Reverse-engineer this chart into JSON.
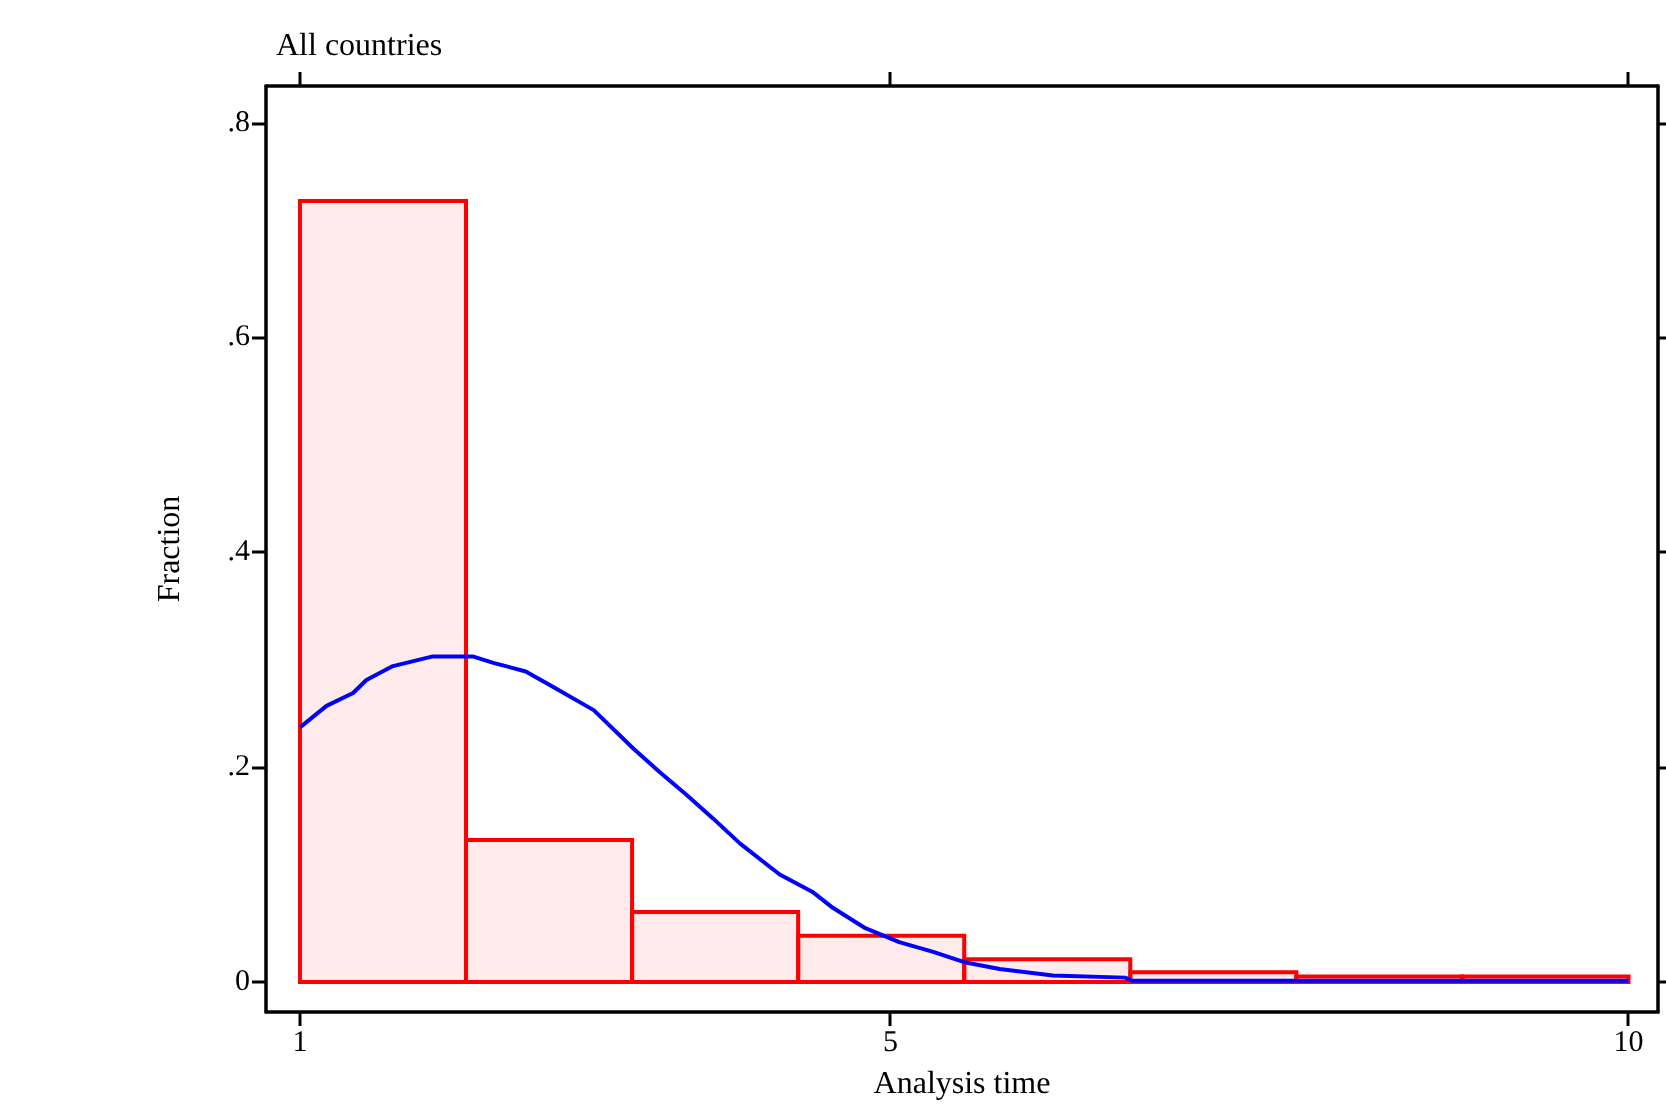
{
  "chart_data": {
    "type": "histogram",
    "title": "All countries",
    "xlabel": "Analysis time",
    "ylabel": "Fraction",
    "bins": [
      1,
      2.125,
      3.25,
      4.375,
      5.5,
      6.625,
      7.75,
      8.875,
      10
    ],
    "series": [
      {
        "color": "#ff0000",
        "values": [
          0.727,
          0.132,
          0.065,
          0.043,
          0.021,
          0.009,
          0.005,
          0.005
        ]
      },
      {
        "type": "line",
        "color": "#0000ff",
        "x": [
          1,
          1.18,
          1.36,
          1.45,
          1.63,
          1.9,
          2.17,
          2.31,
          2.53,
          2.71,
          2.99,
          3.26,
          3.44,
          3.62,
          3.8,
          3.98,
          4.25,
          4.47,
          4.61,
          4.83,
          5.06,
          5.29,
          5.51,
          5.74,
          6.1,
          6.59,
          6.64,
          8,
          10
        ],
        "values": [
          0.237,
          0.257,
          0.269,
          0.281,
          0.294,
          0.303,
          0.303,
          0.297,
          0.289,
          0.275,
          0.253,
          0.217,
          0.195,
          0.174,
          0.152,
          0.129,
          0.1,
          0.084,
          0.069,
          0.05,
          0.037,
          0.028,
          0.018,
          0.012,
          0.006,
          0.004,
          0.001,
          0.001,
          0.001
        ]
      }
    ],
    "xlim": [
      0.77,
      10.2
    ],
    "xticks": [
      1,
      5,
      10
    ],
    "ylim": [
      -0.028,
      0.834
    ],
    "yticks": [
      {
        "value": 0,
        "label": "0"
      },
      {
        "value": 0.2,
        "label": ".2"
      },
      {
        "value": 0.4,
        "label": ".4"
      },
      {
        "value": 0.6,
        "label": ".6"
      },
      {
        "value": 0.8,
        "label": ".8"
      }
    ]
  }
}
